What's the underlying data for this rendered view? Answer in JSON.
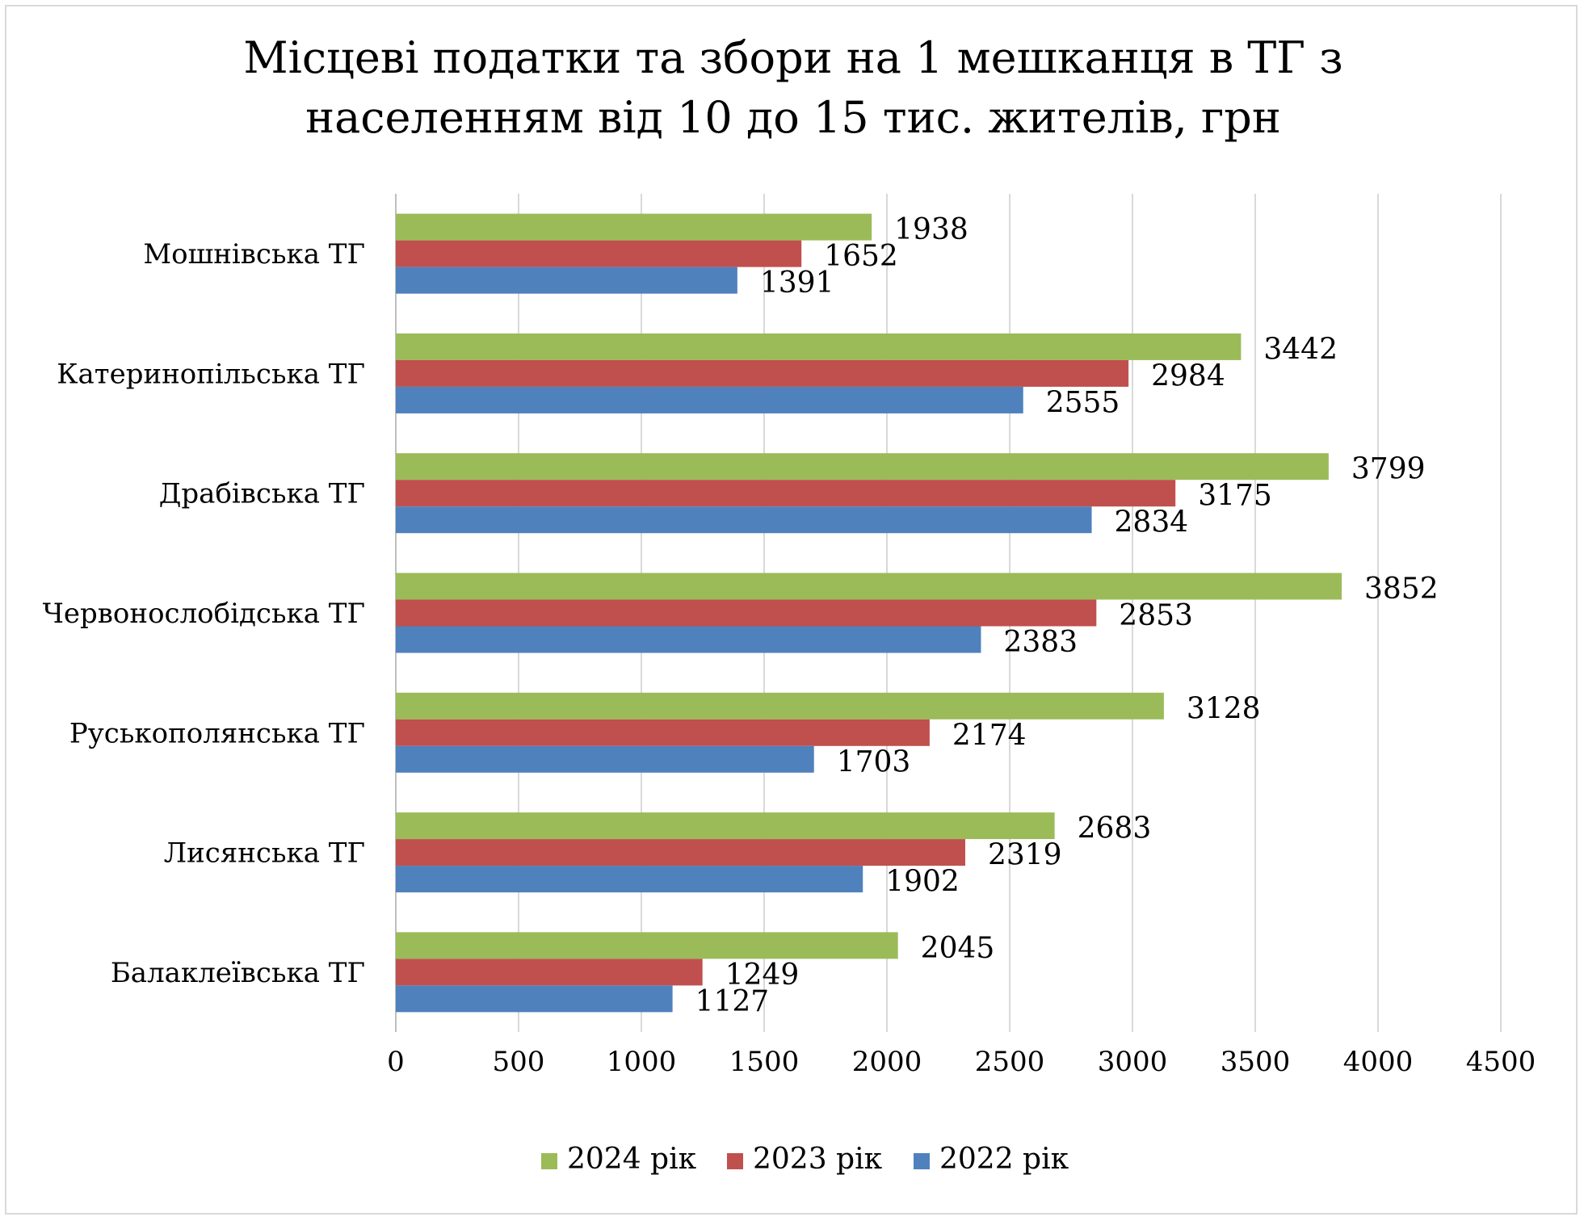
{
  "chart_data": {
    "type": "bar",
    "orientation": "horizontal",
    "title_lines": [
      "Місцеві податки та збори на 1 мешканця в ТГ з",
      "населенням від 10 до 15 тис. жителів, грн"
    ],
    "categories": [
      "Мошнівська ТГ",
      "Катеринопільська ТГ",
      "Драбівська ТГ",
      "Червонослобідська ТГ",
      "Руськополянська ТГ",
      "Лисянська ТГ",
      "Балаклеївська ТГ"
    ],
    "series": [
      {
        "name": "2024 рік",
        "color": "#9bbb59",
        "values": [
          1938,
          3442,
          3799,
          3852,
          3128,
          2683,
          2045
        ]
      },
      {
        "name": "2023 рік",
        "color": "#c0504d",
        "values": [
          1652,
          2984,
          3175,
          2853,
          2174,
          2319,
          1249
        ]
      },
      {
        "name": "2022 рік",
        "color": "#4f81bd",
        "values": [
          1391,
          2555,
          2834,
          2383,
          1703,
          1902,
          1127
        ]
      }
    ],
    "xlim": [
      0,
      4500
    ],
    "ticks": [
      "0",
      "500",
      "1000",
      "1500",
      "2000",
      "2500",
      "3000",
      "3500",
      "4000",
      "4500"
    ],
    "tick_values": [
      0,
      500,
      1000,
      1500,
      2000,
      2500,
      3000,
      3500,
      4000,
      4500
    ],
    "grid": true,
    "legend_position": "bottom"
  }
}
